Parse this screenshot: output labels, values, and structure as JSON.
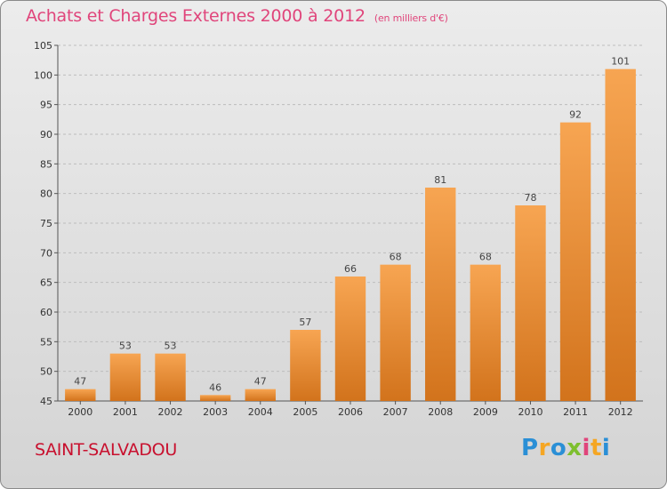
{
  "header": {
    "title": "Achats et Charges Externes 2000 à 2012",
    "subtitle": "(en milliers d'€)"
  },
  "footer": {
    "commune": "SAINT-SALVADOU",
    "logo_letters": [
      "P",
      "r",
      "o",
      "x",
      "i",
      "t",
      "i"
    ],
    "logo_colors": [
      "#2a8fd6",
      "#f5a623",
      "#2a8fd6",
      "#7dbf2e",
      "#e0457b",
      "#f5a623",
      "#2a8fd6"
    ]
  },
  "colors": {
    "bar_light": "#f7a552",
    "bar_dark": "#d2731c",
    "grid": "#bdbdbd"
  },
  "chart_data": {
    "type": "bar",
    "categories": [
      "2000",
      "2001",
      "2002",
      "2003",
      "2004",
      "2005",
      "2006",
      "2007",
      "2008",
      "2009",
      "2010",
      "2011",
      "2012"
    ],
    "values": [
      47,
      53,
      53,
      46,
      47,
      57,
      66,
      68,
      81,
      68,
      78,
      92,
      101
    ],
    "ylim": [
      45,
      105
    ],
    "yticks": [
      45,
      50,
      55,
      60,
      65,
      70,
      75,
      80,
      85,
      90,
      95,
      100,
      105
    ],
    "grid": true,
    "xlabel": "",
    "ylabel": ""
  }
}
